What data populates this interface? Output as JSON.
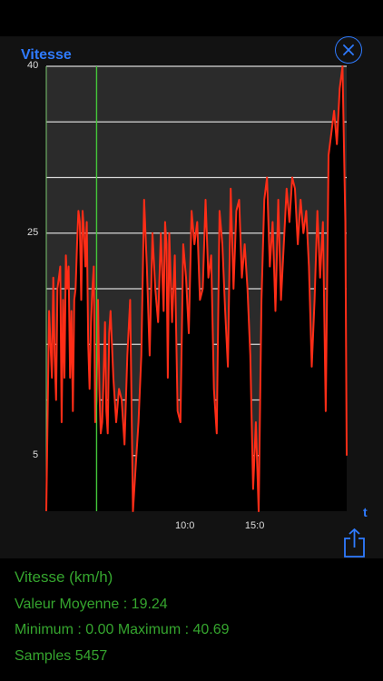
{
  "chart": {
    "title": "Vitesse",
    "x_axis_symbol": "t"
  },
  "stats": {
    "title": "Vitesse (km/h)",
    "average": "Valeur Moyenne : 19.24",
    "minmax": "Minimum : 0.00 Maximum : 40.69",
    "samples": "Samples 5457"
  },
  "colors": {
    "accent": "#2f7bff",
    "series": "#ff2d17",
    "cursor": "#44c73a",
    "stats_text": "#35a52e"
  },
  "icons": [
    "close-icon",
    "share-icon"
  ],
  "chart_data": {
    "type": "line",
    "title": "Vitesse",
    "xlabel": "t",
    "ylabel": "",
    "ylim": [
      0,
      40
    ],
    "y_tick_labels": [
      "5",
      "25",
      "40"
    ],
    "y_ticks": [
      5,
      25,
      40
    ],
    "x_tick_labels": [
      "10:0",
      "15:0"
    ],
    "xlim": [
      0,
      21.5
    ],
    "x_ticks": [
      10,
      15
    ],
    "cursor_x": 3.6,
    "grid": true,
    "series": [
      {
        "x": [
          0.0,
          0.2,
          0.4,
          0.5,
          0.6,
          0.7,
          0.8,
          0.9,
          1.0,
          1.1,
          1.2,
          1.3,
          1.4,
          1.5,
          1.6,
          1.7,
          1.8,
          1.9,
          2.0,
          2.1,
          2.2,
          2.3,
          2.4,
          2.5,
          2.6,
          2.7,
          2.8,
          2.9,
          3.0,
          3.1,
          3.2,
          3.3,
          3.4,
          3.5,
          3.6,
          3.7,
          3.8,
          3.9,
          4.0,
          4.1,
          4.2,
          4.3,
          4.4,
          4.5,
          4.6,
          4.8,
          5.0,
          5.2,
          5.4,
          5.6,
          5.8,
          6.0,
          6.2,
          6.4,
          6.6,
          6.8,
          7.0,
          7.2,
          7.4,
          7.6,
          7.8,
          8.0,
          8.2,
          8.4,
          8.5,
          8.6,
          8.7,
          8.8,
          8.9,
          9.0,
          9.2,
          9.4,
          9.6,
          9.8,
          10.0,
          10.2,
          10.4,
          10.6,
          10.8,
          11.0,
          11.2,
          11.4,
          11.6,
          11.8,
          12.0,
          12.2,
          12.4,
          12.6,
          12.8,
          13.0,
          13.2,
          13.4,
          13.6,
          13.8,
          14.0,
          14.2,
          14.4,
          14.6,
          14.8,
          15.0,
          15.2,
          15.4,
          15.6,
          15.8,
          16.0,
          16.2,
          16.4,
          16.6,
          16.8,
          17.0,
          17.2,
          17.4,
          17.6,
          17.8,
          18.0,
          18.2,
          18.4,
          18.6,
          18.8,
          19.0,
          19.2,
          19.4,
          19.6,
          19.8,
          20.0,
          20.2,
          20.4,
          20.6,
          20.8,
          21.0,
          21.2,
          21.4,
          21.5
        ],
        "values": [
          0,
          18,
          12,
          21,
          14,
          10,
          20,
          21,
          22,
          8,
          19,
          12,
          23,
          20,
          22,
          12,
          18,
          9,
          19,
          20,
          24,
          27,
          26,
          19,
          27,
          25,
          22,
          26,
          15,
          11,
          17,
          20,
          22,
          8,
          10,
          19,
          11,
          7,
          8,
          12,
          17,
          9,
          7,
          16,
          18,
          12,
          8,
          11,
          10,
          6,
          14,
          19,
          0,
          4,
          8,
          14,
          28,
          22,
          14,
          25,
          20,
          17,
          25,
          18,
          26,
          24,
          12,
          25,
          21,
          17,
          23,
          9,
          8,
          24,
          21,
          16,
          27,
          24,
          26,
          19,
          20,
          28,
          21,
          23,
          11,
          7,
          27,
          24,
          18,
          13,
          29,
          20,
          27,
          28,
          21,
          24,
          20,
          14,
          2,
          8,
          0,
          19,
          28,
          30,
          22,
          26,
          18,
          28,
          19,
          24,
          29,
          26,
          30,
          29,
          24,
          28,
          25,
          27,
          22,
          13,
          19,
          27,
          21,
          26,
          9,
          32,
          34,
          36,
          33,
          38,
          40,
          26,
          5
        ]
      }
    ]
  }
}
